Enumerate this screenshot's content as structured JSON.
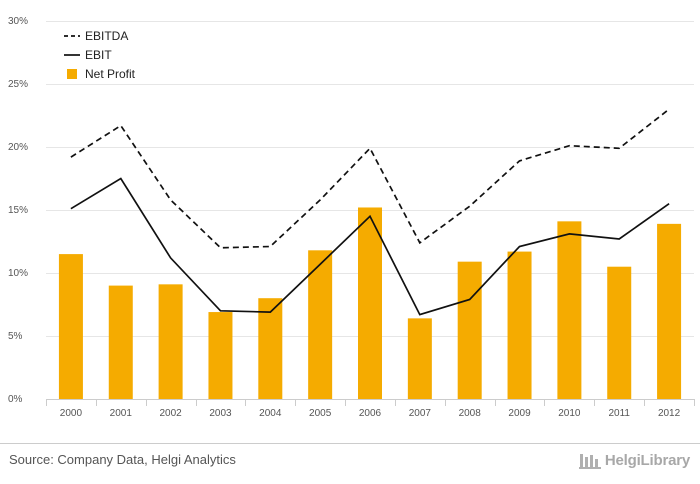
{
  "chart_data": {
    "type": "bar",
    "categories": [
      "2000",
      "2001",
      "2002",
      "2003",
      "2004",
      "2005",
      "2006",
      "2007",
      "2008",
      "2009",
      "2010",
      "2011",
      "2012"
    ],
    "series": [
      {
        "name": "EBITDA",
        "type": "line",
        "style": "dashed",
        "color": "#111111",
        "values": [
          19.2,
          21.7,
          15.8,
          12.0,
          12.1,
          15.8,
          19.9,
          12.4,
          15.3,
          18.9,
          20.1,
          19.9,
          23.0
        ]
      },
      {
        "name": "EBIT",
        "type": "line",
        "style": "solid",
        "color": "#111111",
        "values": [
          15.1,
          17.5,
          11.2,
          7.0,
          6.9,
          10.7,
          14.5,
          6.7,
          7.9,
          12.1,
          13.1,
          12.7,
          15.5
        ]
      },
      {
        "name": "Net Profit",
        "type": "bar",
        "color": "#f5ab00",
        "values": [
          11.5,
          9.0,
          9.1,
          6.9,
          8.0,
          11.8,
          15.2,
          6.4,
          10.9,
          11.7,
          14.1,
          10.5,
          13.9
        ]
      }
    ],
    "ylim": [
      0,
      30
    ],
    "yticks": [
      0,
      5,
      10,
      15,
      20,
      25,
      30
    ],
    "ytick_labels": [
      "0%",
      "5%",
      "10%",
      "15%",
      "20%",
      "25%",
      "30%"
    ],
    "grid": true,
    "legend_position": "top-left"
  },
  "footer": {
    "source": "Source: Company Data, Helgi Analytics",
    "brand": "HelgiLibrary"
  }
}
